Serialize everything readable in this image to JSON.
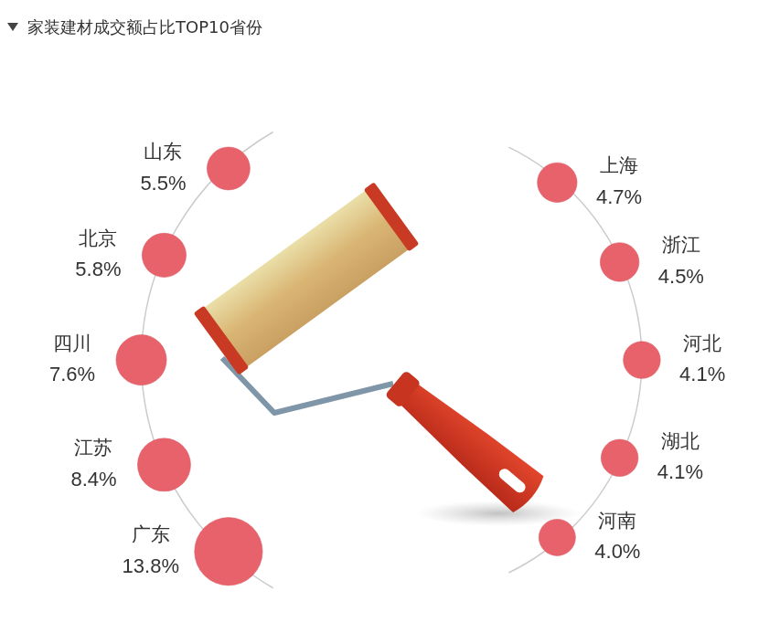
{
  "chart_data": {
    "type": "bubble",
    "title": "家装建材成交额占比TOP10省份",
    "categories": [
      "广东",
      "江苏",
      "四川",
      "北京",
      "山东",
      "上海",
      "浙江",
      "河北",
      "湖北",
      "河南"
    ],
    "values": [
      13.8,
      8.4,
      7.6,
      5.8,
      5.5,
      4.7,
      4.5,
      4.1,
      4.1,
      4.0
    ],
    "value_labels": [
      "13.8%",
      "8.4%",
      "7.6%",
      "5.8%",
      "5.5%",
      "4.7%",
      "4.5%",
      "4.1%",
      "4.1%",
      "4.0%"
    ],
    "color": "#e8626c",
    "data_labels": true,
    "tick_labels": false,
    "grid": false
  }
}
